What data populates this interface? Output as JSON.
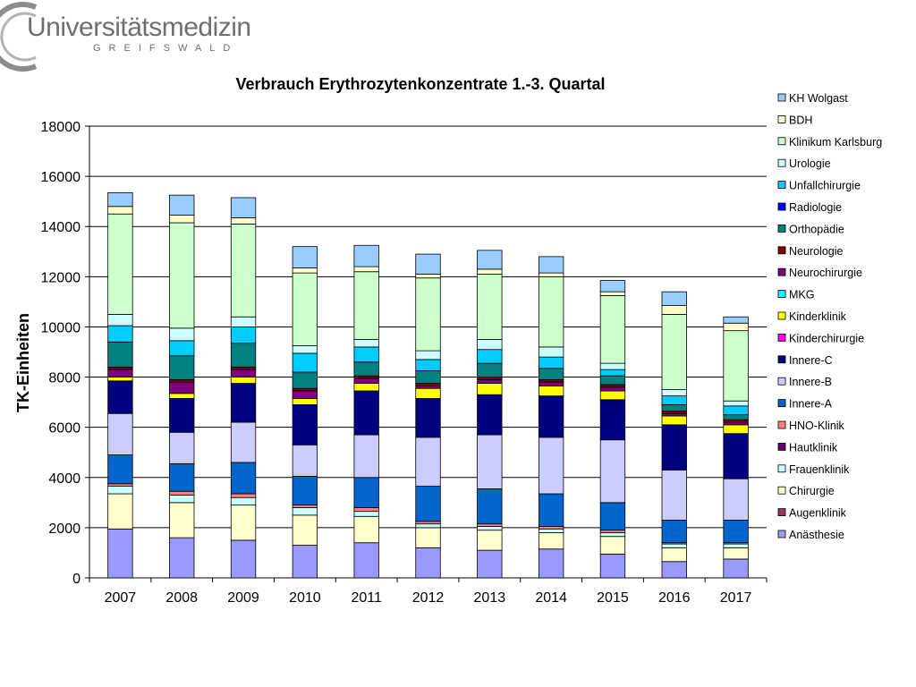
{
  "logo": {
    "name": "Universitätsmedizin",
    "sub": "GREIFSWALD"
  },
  "chart_data": {
    "type": "bar",
    "stacked": true,
    "title": "Verbrauch Erythrozytenkonzentrate 1.-3. Quartal",
    "xlabel": "",
    "ylabel": "TK-Einheiten",
    "ylim": [
      0,
      18000
    ],
    "yticks": [
      0,
      2000,
      4000,
      6000,
      8000,
      10000,
      12000,
      14000,
      16000,
      18000
    ],
    "grid": true,
    "legend_position": "right",
    "categories": [
      "2007",
      "2008",
      "2009",
      "2010",
      "2011",
      "2012",
      "2013",
      "2014",
      "2015",
      "2016",
      "2017"
    ],
    "series": [
      {
        "name": "Anästhesie",
        "color": "#9999ff",
        "values": [
          1950,
          1600,
          1500,
          1300,
          1400,
          1200,
          1100,
          1150,
          950,
          650,
          750
        ]
      },
      {
        "name": "Augenklinik",
        "color": "#993366",
        "values": [
          0,
          0,
          0,
          0,
          0,
          0,
          0,
          0,
          0,
          0,
          0
        ]
      },
      {
        "name": "Chirurgie",
        "color": "#ffffcc",
        "values": [
          1400,
          1400,
          1400,
          1200,
          1050,
          800,
          800,
          650,
          700,
          550,
          450
        ]
      },
      {
        "name": "Frauenklinik",
        "color": "#ccffff",
        "values": [
          300,
          300,
          300,
          300,
          200,
          150,
          150,
          150,
          150,
          150,
          150
        ]
      },
      {
        "name": "Hautklinik",
        "color": "#660066",
        "values": [
          0,
          0,
          0,
          0,
          0,
          0,
          0,
          0,
          0,
          0,
          0
        ]
      },
      {
        "name": "HNO-Klinik",
        "color": "#ff8080",
        "values": [
          100,
          150,
          150,
          100,
          150,
          100,
          100,
          100,
          100,
          50,
          50
        ]
      },
      {
        "name": "Innere-A",
        "color": "#0066cc",
        "values": [
          1150,
          1100,
          1250,
          1150,
          1200,
          1400,
          1400,
          1300,
          1100,
          900,
          900
        ]
      },
      {
        "name": "Innere-B",
        "color": "#ccccff",
        "values": [
          1650,
          1250,
          1600,
          1250,
          1700,
          1950,
          2150,
          2250,
          2500,
          2000,
          1650
        ]
      },
      {
        "name": "Innere-C",
        "color": "#000080",
        "values": [
          1300,
          1350,
          1550,
          1600,
          1750,
          1550,
          1600,
          1650,
          1600,
          1800,
          1800
        ]
      },
      {
        "name": "Kinderchirurgie",
        "color": "#ff00ff",
        "values": [
          0,
          0,
          0,
          0,
          0,
          0,
          0,
          0,
          0,
          0,
          0
        ]
      },
      {
        "name": "Kinderklinik",
        "color": "#ffff00",
        "values": [
          150,
          200,
          250,
          250,
          300,
          400,
          450,
          400,
          350,
          350,
          350
        ]
      },
      {
        "name": "MKG",
        "color": "#00ffff",
        "values": [
          0,
          0,
          0,
          0,
          0,
          0,
          0,
          0,
          0,
          0,
          0
        ]
      },
      {
        "name": "Neurochirurgie",
        "color": "#800080",
        "values": [
          300,
          450,
          300,
          300,
          200,
          100,
          150,
          150,
          150,
          100,
          100
        ]
      },
      {
        "name": "Neurologie",
        "color": "#800000",
        "values": [
          100,
          100,
          100,
          100,
          100,
          100,
          100,
          100,
          100,
          100,
          100
        ]
      },
      {
        "name": "Orthopädie",
        "color": "#008080",
        "values": [
          1000,
          950,
          950,
          650,
          550,
          500,
          550,
          450,
          350,
          250,
          200
        ]
      },
      {
        "name": "Radiologie",
        "color": "#0000ff",
        "values": [
          0,
          0,
          0,
          0,
          0,
          0,
          0,
          0,
          0,
          0,
          0
        ]
      },
      {
        "name": "Unfallchirurgie",
        "color": "#00ccff",
        "values": [
          650,
          600,
          650,
          750,
          600,
          450,
          550,
          450,
          250,
          350,
          350
        ]
      },
      {
        "name": "Urologie",
        "color": "#ccffff",
        "values": [
          450,
          500,
          400,
          300,
          300,
          350,
          400,
          400,
          250,
          250,
          200
        ]
      },
      {
        "name": "Klinikum Karlsburg",
        "color": "#ccffcc",
        "values": [
          4000,
          4200,
          3700,
          2900,
          2700,
          2900,
          2600,
          2800,
          2700,
          3000,
          2800
        ]
      },
      {
        "name": "BDH",
        "color": "#ffffcc",
        "values": [
          300,
          300,
          250,
          200,
          200,
          150,
          200,
          150,
          150,
          350,
          300
        ]
      },
      {
        "name": "KH Wolgast",
        "color": "#99ccff",
        "values": [
          550,
          800,
          800,
          850,
          850,
          800,
          750,
          650,
          450,
          550,
          250
        ]
      }
    ]
  }
}
